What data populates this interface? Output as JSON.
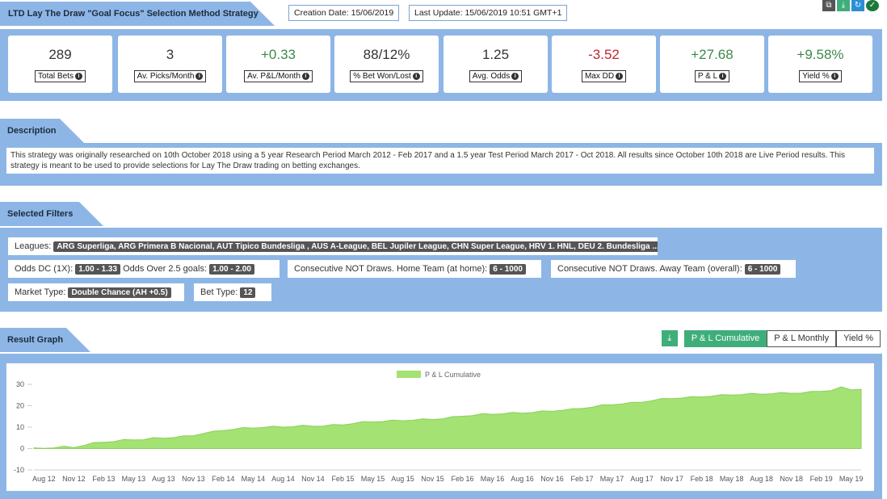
{
  "header": {
    "title": "LTD Lay The Draw \"Goal Focus\" Selection Method Strategy",
    "creation_date": "Creation Date: 15/06/2019",
    "last_update": "Last Update: 15/06/2019 10:51 GMT+1",
    "icons": [
      "copy-icon",
      "download-icon",
      "refresh-icon",
      "check-icon"
    ]
  },
  "stats": [
    {
      "value": "289",
      "label": "Total Bets",
      "tone": "neu"
    },
    {
      "value": "3",
      "label": "Av. Picks/Month",
      "tone": "neu"
    },
    {
      "value": "+0.33",
      "label": "Av. P&L/Month",
      "tone": "pos"
    },
    {
      "value": "88/12%",
      "label": "% Bet Won/Lost",
      "tone": "neu"
    },
    {
      "value": "1.25",
      "label": "Avg. Odds",
      "tone": "neu"
    },
    {
      "value": "-3.52",
      "label": "Max DD",
      "tone": "neg"
    },
    {
      "value": "+27.68",
      "label": "P & L",
      "tone": "pos"
    },
    {
      "value": "+9.58%",
      "label": "Yield %",
      "tone": "pos"
    }
  ],
  "description": {
    "title": "Description",
    "text": "This strategy was originally researched on 10th October 2018 using a 5 year Research Period March 2012 - Feb 2017 and a 1.5 year Test Period March 2017 - Oct 2018. All results since October 10th 2018 are Live Period results. This strategy is meant to be used to provide selections for Lay The Draw trading on betting exchanges."
  },
  "filters": {
    "title": "Selected Filters",
    "leagues_label": "Leagues:",
    "leagues_value": "ARG Superliga, ARG Primera B Nacional, AUT Tipico Bundesliga , AUS A-League, BEL Jupiler League, CHN Super League, HRV 1. HNL, DEU 2. Bundesliga ...",
    "odds_dc_label": "Odds DC (1X):",
    "odds_dc_value": "1.00 - 1.33",
    "odds_over_label": "Odds Over 2.5 goals:",
    "odds_over_value": "1.00 - 2.00",
    "home_label": "Consecutive NOT Draws. Home Team (at home):",
    "home_value": "6 - 1000",
    "away_label": "Consecutive NOT Draws. Away Team (overall):",
    "away_value": "6 - 1000",
    "market_label": "Market Type:",
    "market_value": "Double Chance (AH +0.5)",
    "bet_type_label": "Bet Type:",
    "bet_type_value": "12"
  },
  "graph": {
    "title": "Result Graph",
    "buttons": [
      "P & L Cumulative",
      "P & L Monthly",
      "Yield %"
    ],
    "active": "P & L Cumulative",
    "fill_color": "#a3e273"
  },
  "chart_data": {
    "type": "area",
    "series": [
      {
        "name": "P & L Cumulative"
      }
    ],
    "x": [
      "Jul 12",
      "Aug 12",
      "Sep 12",
      "Oct 12",
      "Nov 12",
      "Dec 12",
      "Jan 13",
      "Feb 13",
      "Mar 13",
      "Apr 13",
      "May 13",
      "Jun 13",
      "Jul 13",
      "Aug 13",
      "Sep 13",
      "Oct 13",
      "Nov 13",
      "Dec 13",
      "Jan 14",
      "Feb 14",
      "Mar 14",
      "Apr 14",
      "May 14",
      "Jun 14",
      "Jul 14",
      "Aug 14",
      "Sep 14",
      "Oct 14",
      "Nov 14",
      "Dec 14",
      "Jan 15",
      "Feb 15",
      "Mar 15",
      "Apr 15",
      "May 15",
      "Jun 15",
      "Jul 15",
      "Aug 15",
      "Sep 15",
      "Oct 15",
      "Nov 15",
      "Dec 15",
      "Jan 16",
      "Feb 16",
      "Mar 16",
      "Apr 16",
      "May 16",
      "Jun 16",
      "Jul 16",
      "Aug 16",
      "Sep 16",
      "Oct 16",
      "Nov 16",
      "Dec 16",
      "Jan 17",
      "Feb 17",
      "Mar 17",
      "Apr 17",
      "May 17",
      "Jun 17",
      "Jul 17",
      "Aug 17",
      "Sep 17",
      "Oct 17",
      "Nov 17",
      "Dec 17",
      "Jan 18",
      "Feb 18",
      "Mar 18",
      "Apr 18",
      "May 18",
      "Jun 18",
      "Jul 18",
      "Aug 18",
      "Sep 18",
      "Oct 18",
      "Nov 18",
      "Dec 18",
      "Jan 19",
      "Feb 19",
      "Mar 19",
      "Apr 19",
      "May 19",
      "Jun 19"
    ],
    "values": [
      0.3,
      0.3,
      0.5,
      0.8,
      0.6,
      1.6,
      2.5,
      3.1,
      3.4,
      3.9,
      4.2,
      4.3,
      4.8,
      5.0,
      5.3,
      5.6,
      6.2,
      7.2,
      7.8,
      8.6,
      9.1,
      9.5,
      9.7,
      10.0,
      10.1,
      10.2,
      10.4,
      10.6,
      10.6,
      10.7,
      10.9,
      11.2,
      11.8,
      12.3,
      12.6,
      12.8,
      13.0,
      13.2,
      13.4,
      13.6,
      13.8,
      14.1,
      14.6,
      15.3,
      15.6,
      16.0,
      16.2,
      16.4,
      16.6,
      16.7,
      17.0,
      17.3,
      17.6,
      18.0,
      18.3,
      18.9,
      19.5,
      20.1,
      20.6,
      21.0,
      21.3,
      21.8,
      22.5,
      23.1,
      23.5,
      23.8,
      24.0,
      24.3,
      24.6,
      24.9,
      25.2,
      25.4,
      25.5,
      25.6,
      25.8,
      25.9,
      26.0,
      26.1,
      26.4,
      26.9,
      27.3,
      28.5,
      27.6,
      27.68
    ],
    "tick_labels": [
      "Aug 12",
      "Nov 12",
      "Feb 13",
      "May 13",
      "Aug 13",
      "Nov 13",
      "Feb 14",
      "May 14",
      "Aug 14",
      "Nov 14",
      "Feb 15",
      "May 15",
      "Aug 15",
      "Nov 15",
      "Feb 16",
      "May 16",
      "Aug 16",
      "Nov 16",
      "Feb 17",
      "May 17",
      "Aug 17",
      "Nov 17",
      "Feb 18",
      "May 18",
      "Aug 18",
      "Nov 18",
      "Feb 19",
      "May 19"
    ],
    "yticks": [
      "30",
      "20",
      "10",
      "0",
      "-10"
    ],
    "ylim": [
      -10,
      30
    ],
    "legend": "top-center",
    "grid": false
  }
}
